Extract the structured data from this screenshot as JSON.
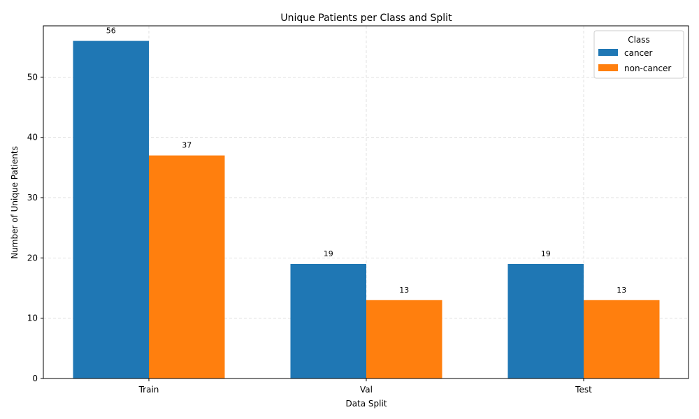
{
  "chart_data": {
    "type": "bar",
    "title": "Unique Patients per Class and Split",
    "xlabel": "Data Split",
    "ylabel": "Number of Unique Patients",
    "categories": [
      "Train",
      "Val",
      "Test"
    ],
    "series": [
      {
        "name": "cancer",
        "color": "#1f77b4",
        "values": [
          56,
          19,
          19
        ]
      },
      {
        "name": "non-cancer",
        "color": "#ff7f0e",
        "values": [
          37,
          13,
          13
        ]
      }
    ],
    "ylim": [
      0,
      58.5
    ],
    "yticks": [
      0,
      10,
      20,
      30,
      40,
      50
    ],
    "grid": true,
    "legend": {
      "title": "Class",
      "position": "top-right"
    }
  }
}
